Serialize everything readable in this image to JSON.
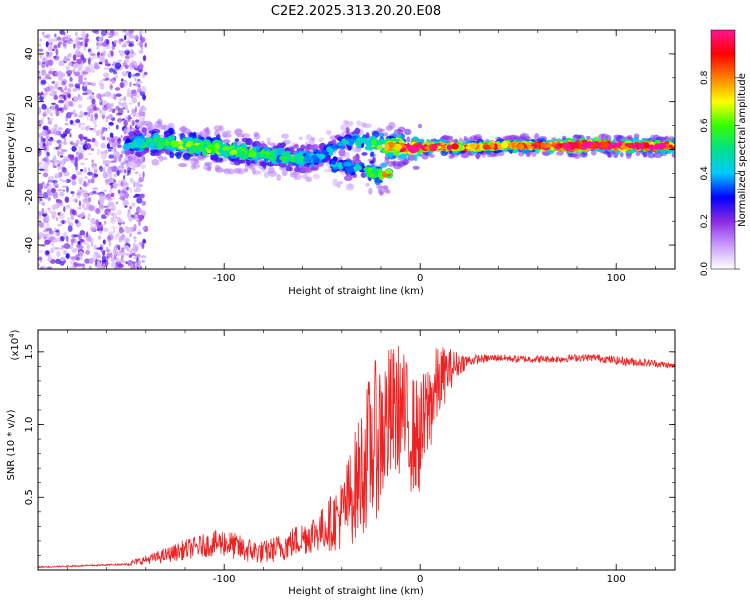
{
  "title": "C2E2.2025.313.20.20.E08",
  "chart_data": [
    {
      "type": "heatmap",
      "name": "spectrogram",
      "xlabel": "Height of straight line (km)",
      "ylabel": "Frequency (Hz)",
      "xlim": [
        -195,
        130
      ],
      "ylim": [
        -50,
        50
      ],
      "xticks": [
        -100,
        0,
        100
      ],
      "yticks": [
        -40,
        -20,
        0,
        20,
        40
      ],
      "colorbar": {
        "label": "Normalized spectral amplitude",
        "range": [
          0.0,
          1.0
        ],
        "ticks": [
          0.0,
          0.2,
          0.4,
          0.6,
          0.8
        ],
        "tick_labels": [
          "0.0",
          "0.2",
          "0.4",
          "0.6",
          "0.8"
        ],
        "colors": [
          "#ffffff",
          "#c89bff",
          "#8a2be2",
          "#0000ff",
          "#00c8ff",
          "#00e08a",
          "#33ff00",
          "#ffff00",
          "#ff8000",
          "#ff0000",
          "#ff1493"
        ]
      },
      "ridge": {
        "description": "dominant spectral band",
        "x": [
          -150,
          -140,
          -130,
          -120,
          -110,
          -100,
          -90,
          -80,
          -70,
          -60,
          -50,
          -40,
          -30,
          -20,
          -10,
          0,
          10,
          20,
          40,
          60,
          80,
          90,
          100,
          110,
          120,
          130
        ],
        "freq": [
          2,
          3,
          3,
          2,
          1,
          0,
          -1,
          -2,
          -3,
          -4,
          -3,
          3,
          3,
          2,
          1,
          1,
          1,
          1,
          1.5,
          1.5,
          1.5,
          2,
          1.5,
          1.5,
          1.5,
          1.5
        ],
        "amplitude": [
          0.35,
          0.45,
          0.5,
          0.55,
          0.55,
          0.5,
          0.5,
          0.45,
          0.45,
          0.4,
          0.35,
          0.35,
          0.4,
          0.6,
          0.75,
          0.85,
          0.8,
          0.7,
          0.7,
          0.75,
          0.9,
          0.95,
          0.85,
          0.8,
          0.8,
          0.8
        ]
      },
      "noise_region_x": [
        -195,
        -140
      ]
    },
    {
      "type": "line",
      "name": "snr",
      "xlabel": "Height of straight line (km)",
      "ylabel": "SNR (10 * v/v)",
      "y_multiplier": "(x10^4)",
      "y_multiplier_base": "(x10",
      "y_multiplier_exp": "4",
      "y_multiplier_close": ")",
      "xlim": [
        -195,
        130
      ],
      "ylim": [
        0,
        1.65
      ],
      "xticks": [
        -100,
        0,
        100
      ],
      "yticks": [
        0.5,
        1.0,
        1.5
      ],
      "ytick_labels": [
        "0.5",
        "1.0",
        "1.5"
      ],
      "color": "#ee2222",
      "series": [
        {
          "name": "SNR",
          "x": [
            -195,
            -170,
            -150,
            -140,
            -130,
            -120,
            -110,
            -100,
            -90,
            -80,
            -70,
            -60,
            -50,
            -40,
            -35,
            -30,
            -25,
            -20,
            -15,
            -10,
            -5,
            0,
            5,
            10,
            15,
            20,
            25,
            30,
            40,
            50,
            60,
            70,
            80,
            90,
            100,
            110,
            120,
            130
          ],
          "y": [
            0.02,
            0.03,
            0.04,
            0.07,
            0.1,
            0.14,
            0.17,
            0.19,
            0.14,
            0.12,
            0.16,
            0.22,
            0.28,
            0.38,
            0.52,
            0.68,
            0.85,
            0.95,
            1.05,
            1.12,
            0.95,
            0.9,
            1.15,
            1.3,
            1.38,
            1.42,
            1.44,
            1.45,
            1.46,
            1.45,
            1.45,
            1.45,
            1.46,
            1.46,
            1.44,
            1.43,
            1.42,
            1.4
          ],
          "spread": [
            0.005,
            0.01,
            0.015,
            0.03,
            0.05,
            0.07,
            0.08,
            0.1,
            0.09,
            0.08,
            0.1,
            0.12,
            0.15,
            0.25,
            0.35,
            0.45,
            0.55,
            0.55,
            0.5,
            0.45,
            0.42,
            0.4,
            0.35,
            0.25,
            0.15,
            0.08,
            0.04,
            0.03,
            0.025,
            0.025,
            0.025,
            0.025,
            0.025,
            0.025,
            0.03,
            0.03,
            0.025,
            0.02
          ]
        }
      ]
    }
  ]
}
